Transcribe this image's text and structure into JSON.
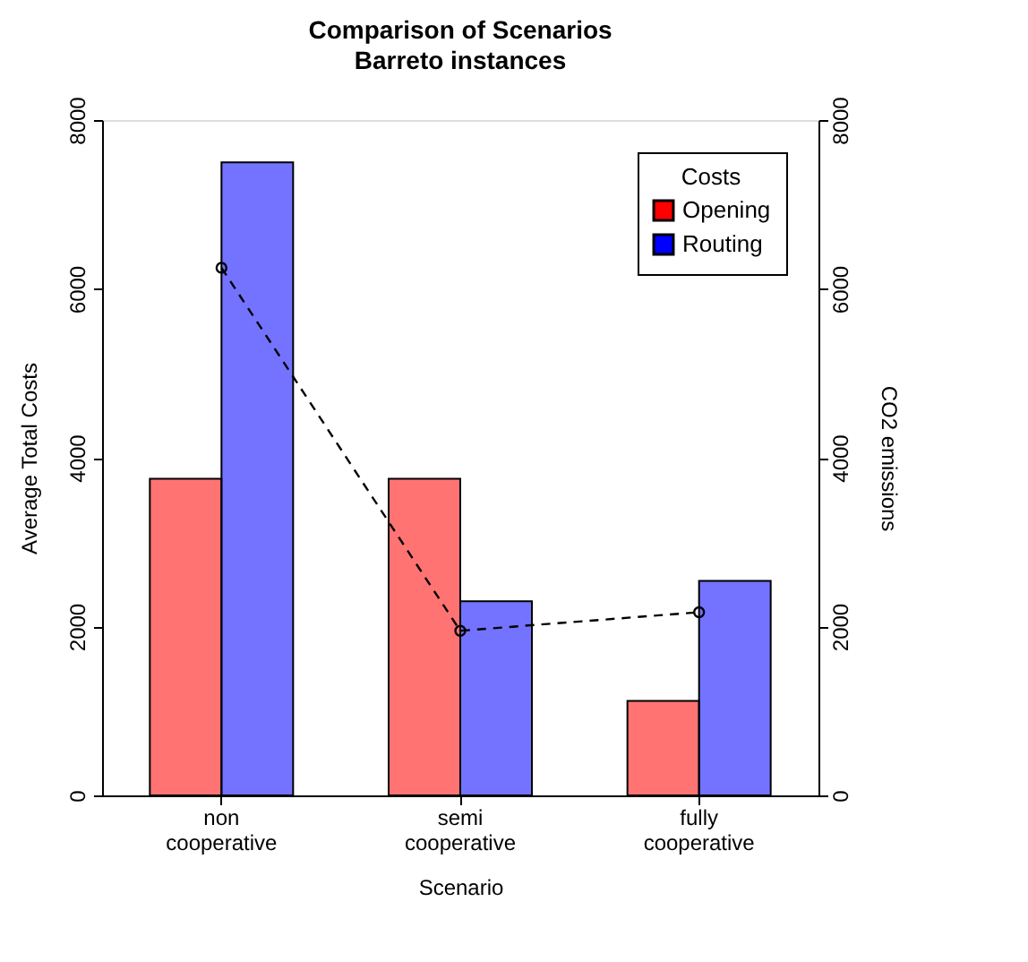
{
  "chart_data": {
    "type": "bar",
    "title": "Comparison of Scenarios",
    "subtitle": "Barreto instances",
    "xlabel": "Scenario",
    "ylabel": "Average Total Costs",
    "y2label": "CO2 emissions",
    "legend_title": "Costs",
    "legend": "top right",
    "categories": [
      "non cooperative",
      "semi cooperative",
      "fully cooperative"
    ],
    "series": [
      {
        "name": "Opening",
        "color": "#ff0000",
        "values": [
          3750,
          3750,
          1120
        ]
      },
      {
        "name": "Routing",
        "color": "#0000ff",
        "values": [
          7500,
          2300,
          2540
        ]
      },
      {
        "type": "line",
        "axis": "y2",
        "color": "#000000",
        "marker": "circle",
        "line_style": "dashed",
        "values": [
          6250,
          1950,
          2170
        ]
      }
    ],
    "ylim": [
      0,
      8000
    ],
    "yticks": [
      0,
      2000,
      4000,
      6000,
      8000
    ],
    "y2lim": [
      0,
      8000
    ],
    "y2ticks": [
      0,
      2000,
      4000,
      6000,
      8000
    ],
    "grid": false
  }
}
